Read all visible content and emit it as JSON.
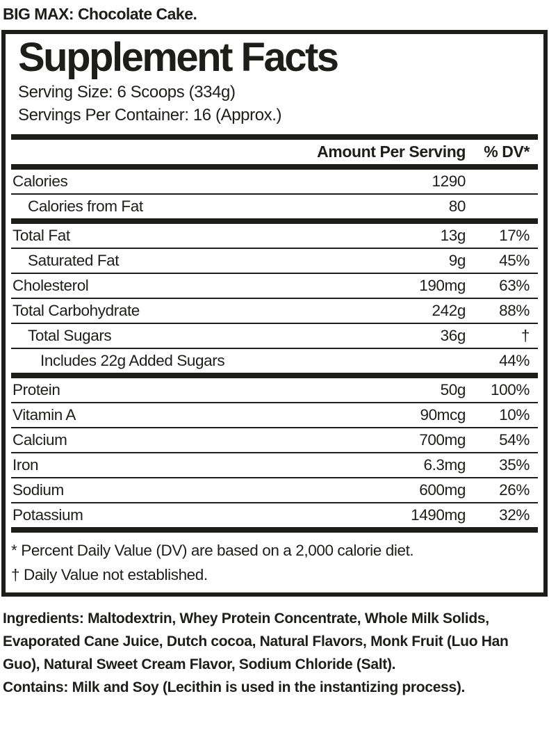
{
  "colors": {
    "ink": "#1d1d1b",
    "background": "#ffffff"
  },
  "product_title": "BIG MAX: Chocolate Cake.",
  "panel": {
    "title": "Supplement Facts",
    "serving_size": "Serving Size: 6 Scoops (334g)",
    "servings_per_container": "Servings Per Container: 16 (Approx.)",
    "columns": {
      "amount": "Amount Per Serving",
      "dv": "% DV*"
    },
    "rows": [
      {
        "name": "Calories",
        "amount": "1290",
        "dv": ""
      },
      {
        "name": "Calories from Fat",
        "amount": "80",
        "dv": ""
      },
      {
        "name": "Total Fat",
        "amount": "13g",
        "dv": "17%"
      },
      {
        "name": "Saturated Fat",
        "amount": "9g",
        "dv": "45%"
      },
      {
        "name": "Cholesterol",
        "amount": "190mg",
        "dv": "63%"
      },
      {
        "name": "Total Carbohydrate",
        "amount": "242g",
        "dv": "88%"
      },
      {
        "name": "Total Sugars",
        "amount": "36g",
        "dv": "†"
      },
      {
        "name": "Includes 22g Added Sugars",
        "amount": "",
        "dv": "44%"
      },
      {
        "name": "Protein",
        "amount": "50g",
        "dv": "100%"
      },
      {
        "name": "Vitamin A",
        "amount": "90mcg",
        "dv": "10%"
      },
      {
        "name": "Calcium",
        "amount": "700mg",
        "dv": "54%"
      },
      {
        "name": "Iron",
        "amount": "6.3mg",
        "dv": "35%"
      },
      {
        "name": "Sodium",
        "amount": "600mg",
        "dv": "26%"
      },
      {
        "name": "Potassium",
        "amount": "1490mg",
        "dv": "32%"
      }
    ],
    "footnotes": [
      "* Percent Daily Value (DV) are based on a 2,000 calorie diet.",
      "† Daily Value not established."
    ]
  },
  "ingredients": {
    "ingredients_line": "Ingredients: Maltodextrin, Whey Protein Concentrate, Whole Milk Solids, Evaporated Cane Juice, Dutch cocoa, Natural Flavors, Monk Fruit (Luo Han Guo), Natural Sweet Cream Flavor, Sodium Chloride (Salt).",
    "contains_line": "Contains: Milk and Soy (Lecithin is used in the instantizing process)."
  }
}
